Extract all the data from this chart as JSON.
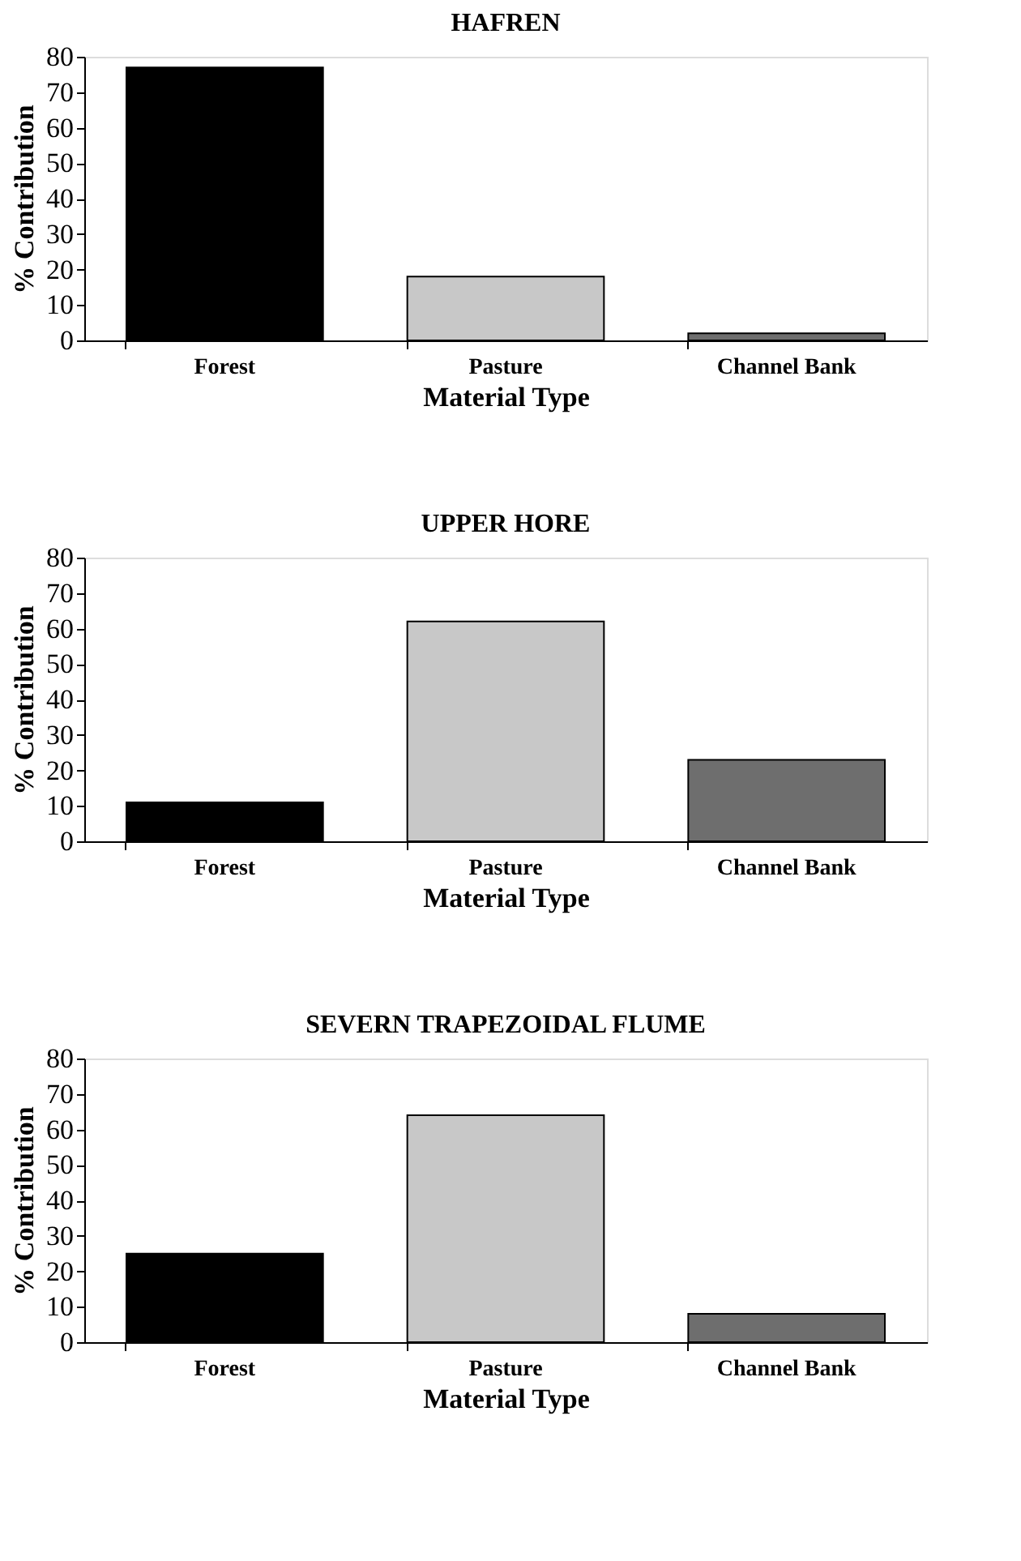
{
  "chart_data": [
    {
      "type": "bar",
      "title": "HAFREN",
      "xlabel": "Material Type",
      "ylabel": "% Contribution",
      "categories": [
        "Forest",
        "Pasture",
        "Channel Bank"
      ],
      "values": [
        77,
        18,
        2
      ],
      "colors": [
        "#000000",
        "#c8c8c8",
        "#6e6e6e"
      ],
      "ylim": [
        0,
        80
      ],
      "yticks": [
        0,
        10,
        20,
        30,
        40,
        50,
        60,
        70,
        80
      ],
      "grid": false,
      "legend": false
    },
    {
      "type": "bar",
      "title": "UPPER HORE",
      "xlabel": "Material Type",
      "ylabel": "% Contribution",
      "categories": [
        "Forest",
        "Pasture",
        "Channel Bank"
      ],
      "values": [
        11,
        62,
        23
      ],
      "colors": [
        "#000000",
        "#c8c8c8",
        "#6e6e6e"
      ],
      "ylim": [
        0,
        80
      ],
      "yticks": [
        0,
        10,
        20,
        30,
        40,
        50,
        60,
        70,
        80
      ],
      "grid": false,
      "legend": false
    },
    {
      "type": "bar",
      "title": "SEVERN TRAPEZOIDAL FLUME",
      "xlabel": "Material Type",
      "ylabel": "% Contribution",
      "categories": [
        "Forest",
        "Pasture",
        "Channel Bank"
      ],
      "values": [
        25,
        64,
        8
      ],
      "colors": [
        "#000000",
        "#c8c8c8",
        "#6e6e6e"
      ],
      "ylim": [
        0,
        80
      ],
      "yticks": [
        0,
        10,
        20,
        30,
        40,
        50,
        60,
        70,
        80
      ],
      "grid": false,
      "legend": false
    }
  ]
}
